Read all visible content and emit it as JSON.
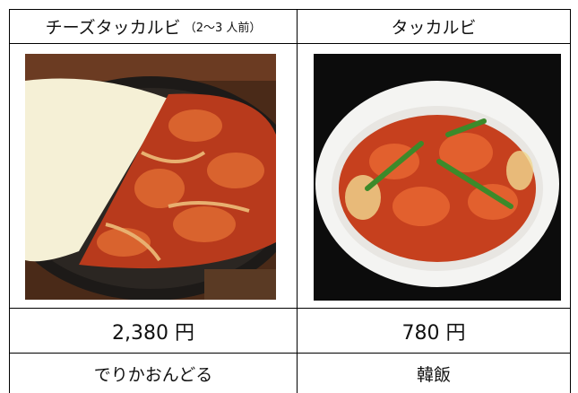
{
  "menu": {
    "columns": [
      {
        "name": "チーズタッカルビ",
        "note": "（2～3 人前）",
        "price": "2,380 円",
        "shop": "でりかおんどる"
      },
      {
        "name": "タッカルビ",
        "price": "780 円",
        "shop": "韓飯"
      }
    ]
  }
}
